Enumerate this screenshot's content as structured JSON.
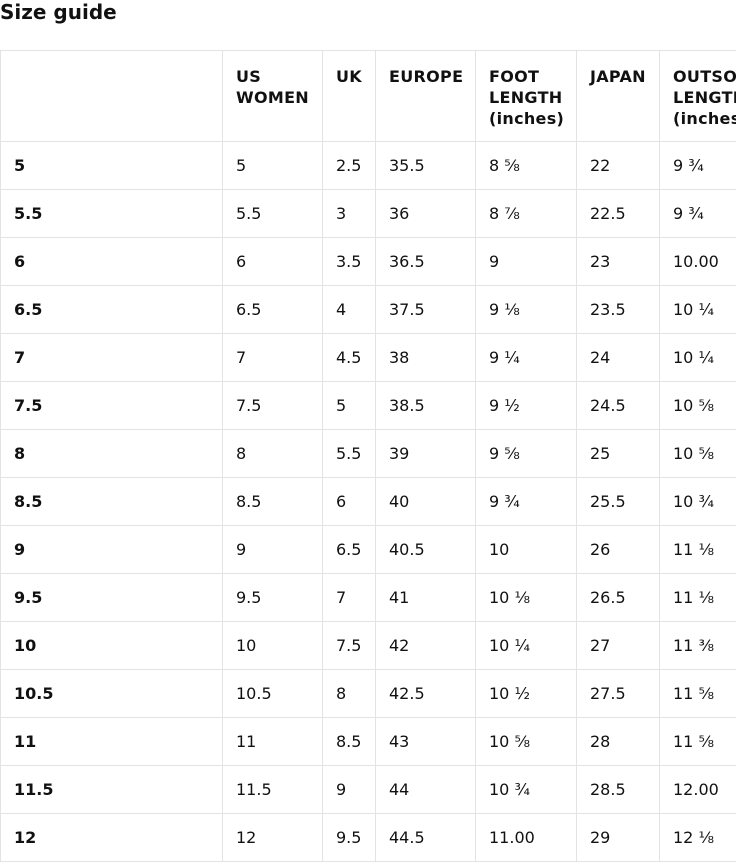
{
  "page": {
    "title": "Size guide"
  },
  "table": {
    "headers": [
      {
        "lines": [
          ""
        ]
      },
      {
        "lines": [
          "US",
          "WOMEN"
        ]
      },
      {
        "lines": [
          "UK"
        ]
      },
      {
        "lines": [
          "EUROPE"
        ]
      },
      {
        "lines": [
          "FOOT",
          "LENGTH",
          "(inches)"
        ]
      },
      {
        "lines": [
          "JAPAN"
        ]
      },
      {
        "lines": [
          "OUTSOLE",
          "LENGTH",
          "(inches)"
        ]
      }
    ],
    "rows": [
      [
        "5",
        "5",
        "2.5",
        "35.5",
        "8 ⅝",
        "22",
        "9 ¾"
      ],
      [
        "5.5",
        "5.5",
        "3",
        "36",
        "8 ⅞",
        "22.5",
        "9 ¾"
      ],
      [
        "6",
        "6",
        "3.5",
        "36.5",
        "9",
        "23",
        "10.00"
      ],
      [
        "6.5",
        "6.5",
        "4",
        "37.5",
        "9 ⅛",
        "23.5",
        "10 ¼"
      ],
      [
        "7",
        "7",
        "4.5",
        "38",
        "9 ¼",
        "24",
        "10 ¼"
      ],
      [
        "7.5",
        "7.5",
        "5",
        "38.5",
        "9 ½",
        "24.5",
        "10 ⅝"
      ],
      [
        "8",
        "8",
        "5.5",
        "39",
        "9 ⅝",
        "25",
        "10 ⅝"
      ],
      [
        "8.5",
        "8.5",
        "6",
        "40",
        "9 ¾",
        "25.5",
        "10 ¾"
      ],
      [
        "9",
        "9",
        "6.5",
        "40.5",
        "10",
        "26",
        "11 ⅛"
      ],
      [
        "9.5",
        "9.5",
        "7",
        "41",
        "10 ⅛",
        "26.5",
        "11 ⅛"
      ],
      [
        "10",
        "10",
        "7.5",
        "42",
        "10 ¼",
        "27",
        "11 ⅜"
      ],
      [
        "10.5",
        "10.5",
        "8",
        "42.5",
        "10 ½",
        "27.5",
        "11 ⅝"
      ],
      [
        "11",
        "11",
        "8.5",
        "43",
        "10 ⅝",
        "28",
        "11 ⅝"
      ],
      [
        "11.5",
        "11.5",
        "9",
        "44",
        "10 ¾",
        "28.5",
        "12.00"
      ],
      [
        "12",
        "12",
        "9.5",
        "44.5",
        "11.00",
        "29",
        "12 ⅛"
      ]
    ]
  }
}
